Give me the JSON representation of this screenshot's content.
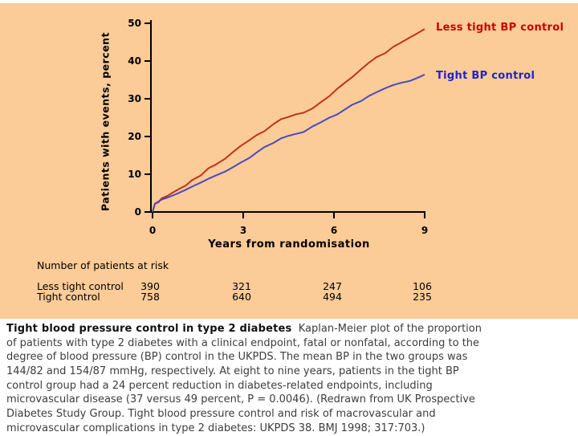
{
  "panel": {
    "background_color": "#FBCB98"
  },
  "chart_data": {
    "type": "line",
    "title": "",
    "xlabel": "Years from randomisation",
    "ylabel": "Patients with events, percent",
    "xlim": [
      0,
      9
    ],
    "ylim": [
      0,
      50
    ],
    "xticks": [
      0,
      3,
      6,
      9
    ],
    "yticks": [
      0,
      10,
      20,
      30,
      40,
      50
    ],
    "grid": false,
    "legend_position": "right of curve ends",
    "series": [
      {
        "name": "Less tight BP control",
        "color": "#C0321A",
        "label_color": "#CC0000",
        "points": [
          [
            0,
            0
          ],
          [
            0.04,
            1.0
          ],
          [
            0.08,
            2.2
          ],
          [
            0.2,
            2.6
          ],
          [
            0.3,
            3.6
          ],
          [
            0.5,
            4.3
          ],
          [
            0.7,
            5.3
          ],
          [
            0.9,
            6.2
          ],
          [
            1.1,
            7.0
          ],
          [
            1.3,
            8.4
          ],
          [
            1.6,
            9.7
          ],
          [
            1.85,
            11.6
          ],
          [
            2.1,
            12.6
          ],
          [
            2.4,
            14.1
          ],
          [
            2.65,
            15.8
          ],
          [
            2.9,
            17.4
          ],
          [
            3.2,
            19.0
          ],
          [
            3.45,
            20.4
          ],
          [
            3.7,
            21.4
          ],
          [
            4.0,
            23.3
          ],
          [
            4.25,
            24.6
          ],
          [
            4.5,
            25.2
          ],
          [
            4.75,
            25.9
          ],
          [
            5.0,
            26.3
          ],
          [
            5.3,
            27.5
          ],
          [
            5.55,
            29.0
          ],
          [
            5.85,
            30.7
          ],
          [
            6.1,
            32.6
          ],
          [
            6.35,
            34.2
          ],
          [
            6.6,
            35.7
          ],
          [
            6.9,
            37.8
          ],
          [
            7.15,
            39.5
          ],
          [
            7.4,
            41.0
          ],
          [
            7.7,
            42.1
          ],
          [
            7.95,
            43.7
          ],
          [
            8.2,
            44.8
          ],
          [
            8.5,
            46.2
          ],
          [
            8.75,
            47.3
          ],
          [
            9.0,
            48.5
          ]
        ]
      },
      {
        "name": "Tight BP control",
        "color": "#4A4ABF",
        "label_color": "#2222CC",
        "points": [
          [
            0,
            0
          ],
          [
            0.04,
            1.2
          ],
          [
            0.08,
            2.2
          ],
          [
            0.3,
            3.3
          ],
          [
            0.5,
            3.8
          ],
          [
            0.8,
            4.8
          ],
          [
            1.05,
            5.7
          ],
          [
            1.3,
            6.7
          ],
          [
            1.6,
            7.8
          ],
          [
            1.85,
            8.8
          ],
          [
            2.1,
            9.7
          ],
          [
            2.4,
            10.7
          ],
          [
            2.65,
            11.8
          ],
          [
            2.9,
            13.0
          ],
          [
            3.2,
            14.3
          ],
          [
            3.45,
            15.8
          ],
          [
            3.7,
            17.2
          ],
          [
            4.0,
            18.3
          ],
          [
            4.25,
            19.5
          ],
          [
            4.5,
            20.2
          ],
          [
            4.75,
            20.7
          ],
          [
            5.0,
            21.2
          ],
          [
            5.3,
            22.7
          ],
          [
            5.55,
            23.7
          ],
          [
            5.85,
            25.0
          ],
          [
            6.1,
            25.8
          ],
          [
            6.35,
            27.1
          ],
          [
            6.6,
            28.4
          ],
          [
            6.9,
            29.4
          ],
          [
            7.15,
            30.7
          ],
          [
            7.4,
            31.7
          ],
          [
            7.7,
            32.8
          ],
          [
            7.95,
            33.6
          ],
          [
            8.2,
            34.2
          ],
          [
            8.5,
            34.7
          ],
          [
            8.75,
            35.5
          ],
          [
            9.0,
            36.4
          ]
        ]
      }
    ]
  },
  "at_risk": {
    "header": "Number of patients at risk",
    "rows": [
      {
        "label": "Less tight control",
        "values": [
          "390",
          "321",
          "247",
          "106"
        ]
      },
      {
        "label": "Tight control",
        "values": [
          "758",
          "640",
          "494",
          "235"
        ]
      }
    ]
  },
  "caption": {
    "lead_bold": "Tight blood pressure control in type 2 diabetes",
    "lines": [
      "  Kaplan-Meier plot of the proportion",
      "of patients with type 2 diabetes with a clinical endpoint, fatal or nonfatal, according to the",
      "degree of blood pressure (BP) control in the UKPDS. The mean BP in the two groups was",
      "144/82 and 154/87 mmHg, respectively. At eight to nine years, patients in the tight BP",
      "control group had a 24 percent reduction in diabetes-related endpoints, including",
      "microvascular disease (37 versus 49 percent, P = 0.0046). (Redrawn from UK Prospective",
      "Diabetes Study Group. Tight blood pressure control and risk of macrovascular and",
      "microvascular complications in type 2 diabetes: UKPDS 38. BMJ 1998; 317:703.)"
    ]
  }
}
